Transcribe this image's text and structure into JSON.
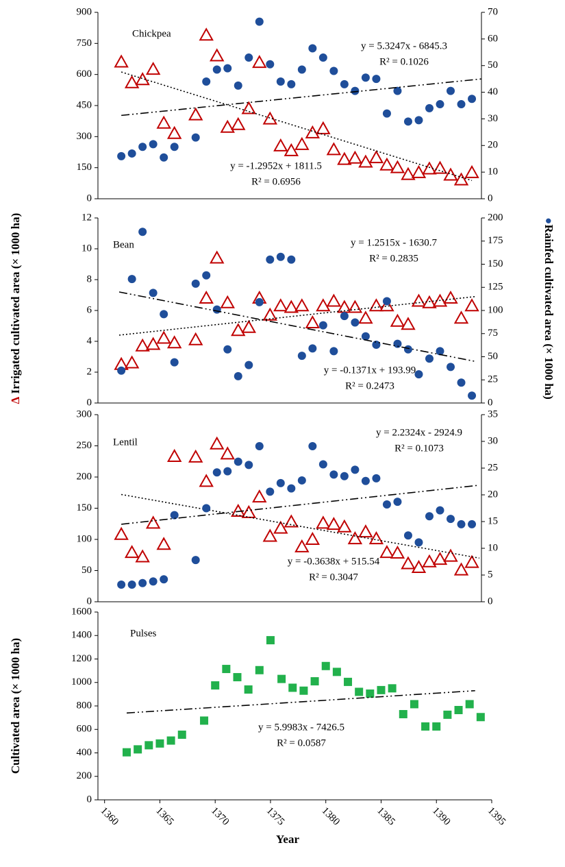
{
  "shared": {
    "ylabel_marker": "∆",
    "ylabel": "Irrigated cultivated area (× 1000 ha)",
    "y2label_marker": "●",
    "y2label": "Rainfed cultivated area (× 1000 ha)"
  },
  "chart_data": [
    {
      "type": "scatter",
      "title": "Chickpea",
      "x": [
        1361,
        1362,
        1363,
        1364,
        1365,
        1366,
        1368,
        1369,
        1370,
        1371,
        1372,
        1373,
        1374,
        1375,
        1376,
        1377,
        1378,
        1379,
        1380,
        1381,
        1382,
        1383,
        1384,
        1385,
        1386,
        1387,
        1388,
        1389,
        1390,
        1391,
        1392,
        1393,
        1394
      ],
      "xlim": [
        1358.8,
        1394.9
      ],
      "ylim": [
        0,
        900
      ],
      "yticks": [
        0,
        150,
        300,
        450,
        600,
        750,
        900
      ],
      "y2lim": [
        0,
        70
      ],
      "y2ticks": [
        0,
        10,
        20,
        30,
        40,
        50,
        60,
        70
      ],
      "series": [
        {
          "color": "#c00000",
          "marker": "triangle",
          "values": [
            660,
            560,
            575,
            625,
            365,
            315,
            405,
            790,
            690,
            345,
            358,
            435,
            658,
            385,
            255,
            232,
            262,
            318,
            338,
            237,
            190,
            196,
            177,
            198,
            163,
            150,
            117,
            126,
            144,
            147,
            114,
            91,
            126
          ],
          "trend": {
            "style": "dotted",
            "x": [
              1361,
              1394
            ],
            "values": [
              612,
              88
            ],
            "equation": "y = -1.2952x + 1811.5",
            "r2": "R² = 0.6956"
          }
        },
        {
          "color": "#1f4e9a",
          "marker": "circle",
          "axis": "y2",
          "values": [
            16,
            17,
            19.5,
            20.5,
            15.5,
            19.5,
            23,
            44,
            48.5,
            49,
            42.5,
            53,
            66.5,
            50.5,
            44,
            43,
            48.5,
            56.5,
            53,
            48,
            43,
            40.5,
            45.5,
            45,
            32,
            40.5,
            29,
            29.5,
            34,
            35.5,
            40.5,
            35.5,
            37.5
          ],
          "trend": {
            "style": "dashdot",
            "x": [
              1361,
              1394.9
            ],
            "values": [
              31.3,
              45
            ],
            "equation": "y = 5.3247x - 6845.3",
            "r2": "R² = 0.1026"
          }
        }
      ]
    },
    {
      "type": "scatter",
      "title": "Bean",
      "x": [
        1361,
        1362,
        1363,
        1364,
        1365,
        1366,
        1368,
        1369,
        1370,
        1371,
        1372,
        1373,
        1374,
        1375,
        1376,
        1377,
        1378,
        1379,
        1380,
        1381,
        1382,
        1383,
        1384,
        1385,
        1386,
        1387,
        1388,
        1389,
        1390,
        1391,
        1392,
        1393,
        1394
      ],
      "xlim": [
        1358.8,
        1394.9
      ],
      "ylim": [
        0,
        12
      ],
      "yticks": [
        0,
        2,
        4,
        6,
        8,
        10,
        12
      ],
      "y2lim": [
        0,
        200
      ],
      "y2ticks": [
        0,
        25,
        50,
        75,
        100,
        125,
        150,
        175,
        200
      ],
      "series": [
        {
          "color": "#c00000",
          "marker": "triangle",
          "values": [
            2.5,
            2.6,
            3.7,
            3.8,
            4.2,
            3.9,
            4.1,
            6.8,
            9.4,
            6.5,
            4.7,
            4.9,
            6.8,
            5.7,
            6.3,
            6.2,
            6.3,
            5.2,
            6.3,
            6.6,
            6.2,
            6.2,
            5.5,
            6.3,
            6.3,
            5.3,
            5.1,
            6.6,
            6.5,
            6.6,
            6.8,
            5.5,
            6.3
          ],
          "trend": {
            "style": "dotted",
            "x": [
              1360.8,
              1394.3
            ],
            "values": [
              4.4,
              6.9
            ],
            "equation": "y = 1.2515x - 1630.7",
            "r2": "R² = 0.2835"
          }
        },
        {
          "color": "#1f4e9a",
          "marker": "circle",
          "axis": "y2",
          "values": [
            35,
            134,
            185,
            119,
            96,
            44,
            129,
            138,
            101,
            58,
            29,
            41,
            109,
            155,
            158,
            155,
            51,
            59,
            84,
            56,
            94,
            87,
            72,
            63,
            110,
            64,
            58,
            31,
            48,
            56,
            39,
            22,
            8
          ],
          "trend": {
            "style": "dashdot",
            "x": [
              1360.8,
              1394.3
            ],
            "values": [
              120,
              45
            ],
            "equation": "y = -0.1371x + 193.99",
            "r2": "R² = 0.2473"
          }
        }
      ]
    },
    {
      "type": "scatter",
      "title": "Lentil",
      "x": [
        1361,
        1362,
        1363,
        1364,
        1365,
        1366,
        1368,
        1369,
        1370,
        1371,
        1372,
        1373,
        1374,
        1375,
        1376,
        1377,
        1378,
        1379,
        1380,
        1381,
        1382,
        1383,
        1384,
        1385,
        1386,
        1387,
        1388,
        1389,
        1390,
        1391,
        1392,
        1393,
        1394
      ],
      "xlim": [
        1358.8,
        1394.9
      ],
      "ylim": [
        0,
        300
      ],
      "yticks": [
        0,
        50,
        100,
        150,
        200,
        250,
        300
      ],
      "y2lim": [
        0,
        35
      ],
      "y2ticks": [
        0,
        5,
        10,
        15,
        20,
        25,
        30,
        35
      ],
      "series": [
        {
          "color": "#c00000",
          "marker": "triangle",
          "values": [
            108,
            79,
            72,
            126,
            92,
            233,
            232,
            193,
            253,
            237,
            145,
            143,
            168,
            105,
            118,
            128,
            88,
            100,
            126,
            124,
            120,
            101,
            112,
            101,
            79,
            78,
            61,
            55,
            64,
            68,
            73,
            51,
            63
          ],
          "trend": {
            "style": "dotted",
            "x": [
              1361,
              1394.7
            ],
            "values": [
              172,
              70
            ],
            "equation": "y = -0.3638x + 515.54",
            "r2": "R² = 0.3047"
          }
        },
        {
          "color": "#1f4e9a",
          "marker": "circle",
          "axis": "y2",
          "values": [
            3.2,
            3.2,
            3.5,
            3.8,
            4.2,
            16.2,
            7.8,
            17.5,
            24.2,
            24.4,
            26.2,
            25.6,
            29.1,
            20.6,
            22.2,
            21.2,
            22.7,
            29.1,
            25.7,
            23.8,
            23.5,
            24.7,
            22.6,
            23.1,
            18.2,
            18.7,
            12.4,
            11.1,
            16.0,
            17.1,
            15.5,
            14.5,
            14.5
          ],
          "trend": {
            "style": "dashdot",
            "x": [
              1361,
              1394.7
            ],
            "values": [
              14.5,
              21.8
            ],
            "equation": "y = 2.2324x - 2924.9",
            "r2": "R² = 0.1073"
          }
        }
      ]
    },
    {
      "type": "scatter",
      "title": "Pulses",
      "xlabel": "Year",
      "ylabel": "Cultivated area (× 1000 ha)",
      "x": [
        1362,
        1363,
        1364,
        1365,
        1366,
        1367,
        1369,
        1370,
        1371,
        1372,
        1373,
        1374,
        1375,
        1376,
        1377,
        1378,
        1379,
        1380,
        1381,
        1382,
        1383,
        1384,
        1385,
        1386,
        1387,
        1388,
        1389,
        1390,
        1391,
        1392,
        1393,
        1394
      ],
      "xlim": [
        1359.4,
        1395
      ],
      "xticks": [
        1360,
        1365,
        1370,
        1375,
        1380,
        1385,
        1390,
        1395
      ],
      "ylim": [
        0,
        1600
      ],
      "yticks": [
        0,
        200,
        400,
        600,
        800,
        1000,
        1200,
        1400,
        1600
      ],
      "series": [
        {
          "color": "#22b14c",
          "marker": "square",
          "values": [
            405,
            430,
            465,
            480,
            505,
            555,
            675,
            975,
            1115,
            1045,
            940,
            1105,
            1360,
            1030,
            955,
            930,
            1010,
            1140,
            1090,
            1005,
            920,
            905,
            935,
            950,
            730,
            815,
            625,
            625,
            725,
            765,
            815,
            705
          ],
          "trend": {
            "style": "dashdot",
            "x": [
              1362,
              1393.5
            ],
            "values": [
              740,
              930
            ],
            "equation": "y = 5.9983x - 7426.5",
            "r2": "R² = 0.0587"
          }
        }
      ]
    }
  ]
}
